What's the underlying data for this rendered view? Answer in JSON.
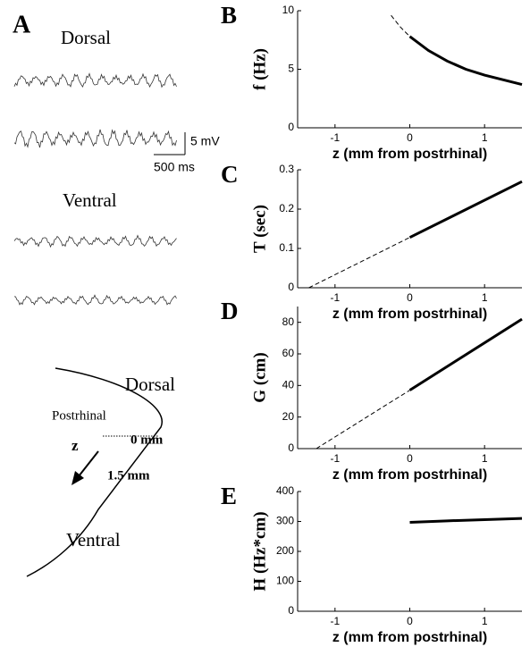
{
  "panel_a": {
    "label": "A",
    "dorsal_title": "Dorsal",
    "scale_voltage": "5 mV",
    "scale_time": "500 ms",
    "ventral_title": "Ventral",
    "diagram": {
      "dorsal": "Dorsal",
      "postrhinal": "Postrhinal",
      "z": "z",
      "start": "0 mm",
      "end": "1.5 mm",
      "ventral": "Ventral"
    }
  },
  "chart_data": [
    {
      "type": "line",
      "panel": "B",
      "xlabel": "z (mm from postrhinal)",
      "ylabel": "f (Hz)",
      "xlim": [
        -1.5,
        1.5
      ],
      "xticks": [
        -1,
        0,
        1
      ],
      "ylim": [
        0,
        10
      ],
      "yticks": [
        0,
        5,
        10
      ],
      "series": [
        {
          "style": "dashed",
          "color": "#000000",
          "x": [
            -0.25,
            -0.125,
            0
          ],
          "values": [
            9.6,
            8.6,
            7.8
          ]
        },
        {
          "style": "solid",
          "color": "#000000",
          "x": [
            0,
            0.25,
            0.5,
            0.75,
            1,
            1.25,
            1.5
          ],
          "values": [
            7.8,
            6.6,
            5.7,
            5.0,
            4.5,
            4.1,
            3.7
          ]
        }
      ]
    },
    {
      "type": "line",
      "panel": "C",
      "xlabel": "z (mm from postrhinal)",
      "ylabel": "T (sec)",
      "xlim": [
        -1.5,
        1.5
      ],
      "xticks": [
        -1,
        0,
        1
      ],
      "ylim": [
        0,
        0.3
      ],
      "yticks": [
        0,
        0.1,
        0.2,
        0.3
      ],
      "series": [
        {
          "style": "dashed",
          "color": "#000000",
          "x": [
            -1.35,
            0
          ],
          "values": [
            0,
            0.128
          ]
        },
        {
          "style": "solid",
          "color": "#000000",
          "x": [
            0,
            1.5
          ],
          "values": [
            0.128,
            0.27
          ]
        }
      ]
    },
    {
      "type": "line",
      "panel": "D",
      "xlabel": "z (mm from postrhinal)",
      "ylabel": "G (cm)",
      "xlim": [
        -1.5,
        1.5
      ],
      "xticks": [
        -1,
        0,
        1
      ],
      "ylim": [
        0,
        90
      ],
      "yticks": [
        0,
        20,
        40,
        60,
        80
      ],
      "series": [
        {
          "style": "dashed",
          "color": "#000000",
          "x": [
            -1.25,
            0
          ],
          "values": [
            0,
            37
          ]
        },
        {
          "style": "solid",
          "color": "#000000",
          "x": [
            0,
            1.5
          ],
          "values": [
            37,
            82
          ]
        }
      ]
    },
    {
      "type": "line",
      "panel": "E",
      "xlabel": "z (mm from postrhinal)",
      "ylabel": "H (Hz*cm)",
      "xlim": [
        -1.5,
        1.5
      ],
      "xticks": [
        -1,
        0,
        1
      ],
      "ylim": [
        0,
        400
      ],
      "yticks": [
        0,
        100,
        200,
        300,
        400
      ],
      "series": [
        {
          "style": "solid",
          "color": "#000000",
          "x": [
            0,
            0.5,
            1,
            1.5
          ],
          "values": [
            297,
            302,
            306,
            310
          ]
        }
      ]
    }
  ]
}
